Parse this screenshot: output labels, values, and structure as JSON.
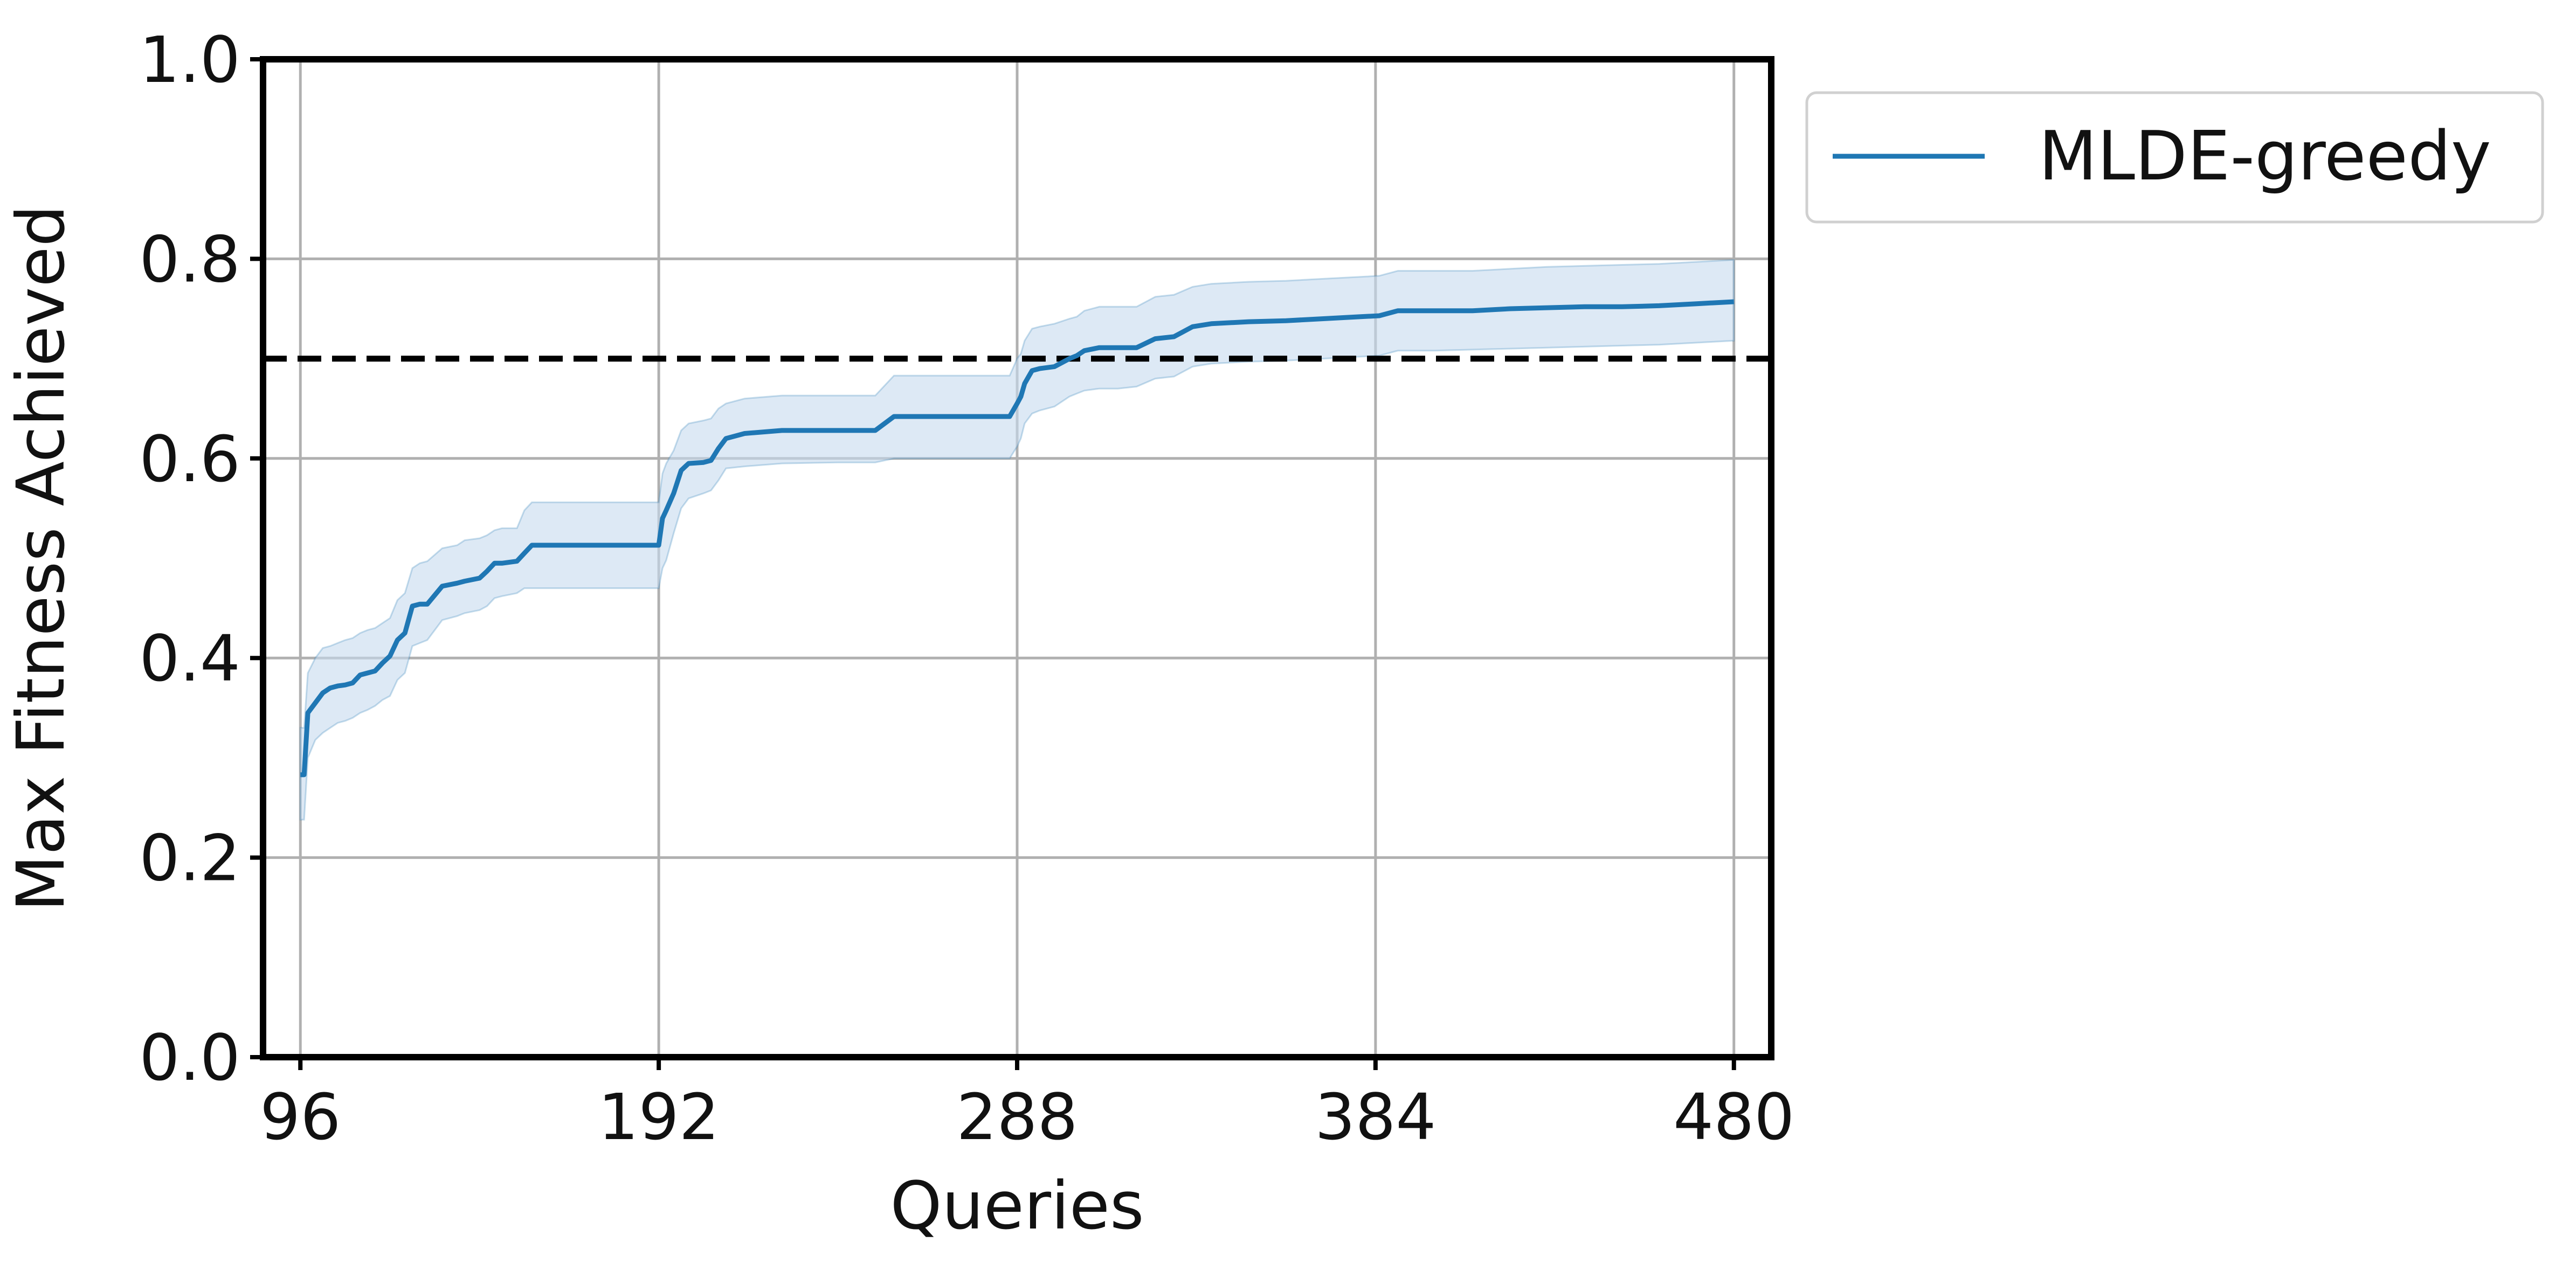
{
  "chart_data": {
    "type": "line",
    "title": "",
    "xlabel": "Queries",
    "ylabel": "Max Fitness Achieved",
    "xlim": [
      86,
      490
    ],
    "ylim": [
      0.0,
      1.0
    ],
    "xticks": [
      96,
      192,
      288,
      384,
      480
    ],
    "yticks": [
      0.0,
      0.2,
      0.4,
      0.6,
      0.8,
      1.0
    ],
    "xtick_labels": [
      "96",
      "192",
      "288",
      "384",
      "480"
    ],
    "ytick_labels": [
      "0.0",
      "0.2",
      "0.4",
      "0.6",
      "0.8",
      "1.0"
    ],
    "grid": true,
    "legend_placement": "outside-upper-right",
    "threshold": {
      "y": 0.7,
      "style": "dashed",
      "color": "#000000"
    },
    "series": [
      {
        "name": "MLDE-greedy",
        "color": "#1f77b4",
        "band_color": "#c6dbef",
        "x": [
          96,
          97,
          98,
          100,
          102,
          104,
          106,
          108,
          110,
          112,
          114,
          116,
          118,
          120,
          122,
          124,
          126,
          128,
          130,
          134,
          138,
          140,
          144,
          146,
          148,
          150,
          154,
          156,
          158,
          160,
          165,
          175,
          185,
          192,
          193,
          194,
          196,
          198,
          200,
          204,
          206,
          208,
          210,
          215,
          225,
          240,
          250,
          255,
          265,
          275,
          286,
          288,
          289,
          290,
          292,
          294,
          298,
          302,
          304,
          306,
          310,
          315,
          320,
          325,
          330,
          335,
          340,
          350,
          360,
          370,
          380,
          385,
          390,
          400,
          410,
          420,
          430,
          440,
          450,
          460,
          470,
          480
        ],
        "y": [
          0.283,
          0.283,
          0.345,
          0.355,
          0.365,
          0.37,
          0.372,
          0.373,
          0.375,
          0.383,
          0.385,
          0.387,
          0.395,
          0.402,
          0.418,
          0.425,
          0.452,
          0.454,
          0.454,
          0.472,
          0.475,
          0.477,
          0.48,
          0.487,
          0.495,
          0.495,
          0.497,
          0.505,
          0.513,
          0.513,
          0.513,
          0.513,
          0.513,
          0.513,
          0.54,
          0.548,
          0.565,
          0.588,
          0.595,
          0.596,
          0.598,
          0.61,
          0.62,
          0.625,
          0.628,
          0.628,
          0.628,
          0.642,
          0.642,
          0.642,
          0.642,
          0.655,
          0.662,
          0.675,
          0.688,
          0.69,
          0.692,
          0.7,
          0.703,
          0.708,
          0.711,
          0.711,
          0.711,
          0.72,
          0.722,
          0.732,
          0.735,
          0.737,
          0.738,
          0.74,
          0.742,
          0.743,
          0.748,
          0.748,
          0.748,
          0.75,
          0.751,
          0.752,
          0.752,
          0.753,
          0.755,
          0.757
        ],
        "lower": [
          0.238,
          0.238,
          0.3,
          0.318,
          0.325,
          0.33,
          0.335,
          0.337,
          0.34,
          0.345,
          0.348,
          0.352,
          0.358,
          0.362,
          0.378,
          0.385,
          0.412,
          0.415,
          0.418,
          0.438,
          0.442,
          0.445,
          0.448,
          0.452,
          0.46,
          0.462,
          0.465,
          0.47,
          0.47,
          0.47,
          0.47,
          0.47,
          0.47,
          0.47,
          0.49,
          0.498,
          0.525,
          0.55,
          0.56,
          0.565,
          0.568,
          0.578,
          0.59,
          0.592,
          0.595,
          0.596,
          0.596,
          0.6,
          0.6,
          0.6,
          0.6,
          0.612,
          0.62,
          0.635,
          0.645,
          0.648,
          0.652,
          0.662,
          0.665,
          0.668,
          0.67,
          0.67,
          0.672,
          0.68,
          0.682,
          0.692,
          0.695,
          0.697,
          0.698,
          0.7,
          0.702,
          0.703,
          0.708,
          0.708,
          0.709,
          0.71,
          0.711,
          0.712,
          0.713,
          0.714,
          0.716,
          0.718
        ],
        "upper": [
          0.33,
          0.33,
          0.385,
          0.4,
          0.41,
          0.412,
          0.415,
          0.418,
          0.42,
          0.425,
          0.428,
          0.43,
          0.435,
          0.44,
          0.458,
          0.465,
          0.49,
          0.495,
          0.497,
          0.51,
          0.513,
          0.518,
          0.52,
          0.523,
          0.528,
          0.53,
          0.53,
          0.548,
          0.556,
          0.556,
          0.556,
          0.556,
          0.556,
          0.556,
          0.585,
          0.595,
          0.608,
          0.628,
          0.635,
          0.638,
          0.64,
          0.65,
          0.655,
          0.66,
          0.663,
          0.663,
          0.663,
          0.683,
          0.683,
          0.683,
          0.683,
          0.7,
          0.705,
          0.718,
          0.73,
          0.732,
          0.735,
          0.74,
          0.742,
          0.748,
          0.752,
          0.752,
          0.752,
          0.762,
          0.764,
          0.772,
          0.775,
          0.777,
          0.778,
          0.78,
          0.782,
          0.783,
          0.788,
          0.788,
          0.788,
          0.79,
          0.792,
          0.793,
          0.794,
          0.795,
          0.797,
          0.799
        ]
      }
    ]
  }
}
